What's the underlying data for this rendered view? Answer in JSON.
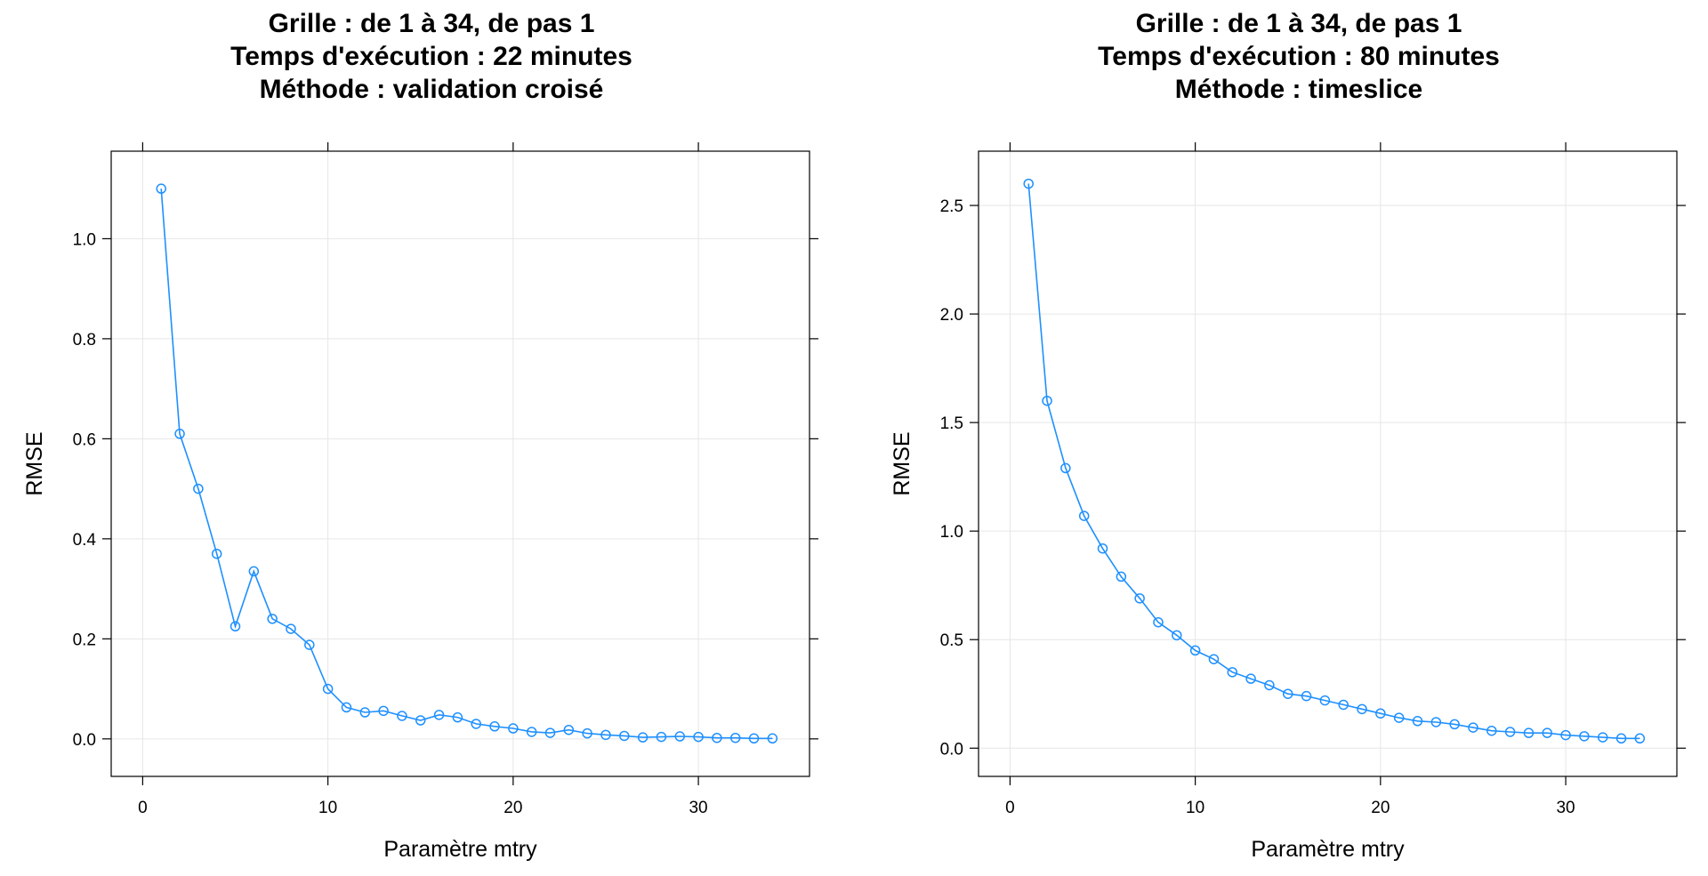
{
  "chart_data": [
    {
      "type": "line",
      "title_lines": [
        "Grille : de 1 à 34, de pas 1",
        "Temps d'exécution : 22 minutes",
        "Méthode : validation croisé"
      ],
      "xlabel": "Paramètre mtry",
      "ylabel": "RMSE",
      "xlim": [
        -1.7,
        36
      ],
      "ylim": [
        -0.075,
        1.175
      ],
      "xticks": [
        0,
        10,
        20,
        30
      ],
      "yticks": [
        0.0,
        0.2,
        0.4,
        0.6,
        0.8,
        1.0
      ],
      "ytick_labels": [
        "0.0",
        "0.2",
        "0.4",
        "0.6",
        "0.8",
        "1.0"
      ],
      "grid": true,
      "marker": "circle",
      "color": "#1E90FF",
      "x": [
        1,
        2,
        3,
        4,
        5,
        6,
        7,
        8,
        9,
        10,
        11,
        12,
        13,
        14,
        15,
        16,
        17,
        18,
        19,
        20,
        21,
        22,
        23,
        24,
        25,
        26,
        27,
        28,
        29,
        30,
        31,
        32,
        33,
        34
      ],
      "y": [
        1.1,
        0.61,
        0.5,
        0.37,
        0.225,
        0.335,
        0.24,
        0.22,
        0.188,
        0.1,
        0.063,
        0.053,
        0.056,
        0.046,
        0.037,
        0.048,
        0.043,
        0.03,
        0.025,
        0.021,
        0.014,
        0.012,
        0.018,
        0.011,
        0.008,
        0.006,
        0.003,
        0.004,
        0.005,
        0.004,
        0.002,
        0.002,
        0.001,
        0.001
      ]
    },
    {
      "type": "line",
      "title_lines": [
        "Grille : de 1 à 34, de pas 1",
        "Temps d'exécution : 80 minutes",
        "Méthode : timeslice"
      ],
      "xlabel": "Paramètre mtry",
      "ylabel": "RMSE",
      "xlim": [
        -1.7,
        36
      ],
      "ylim": [
        -0.13,
        2.75
      ],
      "xticks": [
        0,
        10,
        20,
        30
      ],
      "yticks": [
        0.0,
        0.5,
        1.0,
        1.5,
        2.0,
        2.5
      ],
      "ytick_labels": [
        "0.0",
        "0.5",
        "1.0",
        "1.5",
        "2.0",
        "2.5"
      ],
      "grid": true,
      "marker": "circle",
      "color": "#1E90FF",
      "x": [
        1,
        2,
        3,
        4,
        5,
        6,
        7,
        8,
        9,
        10,
        11,
        12,
        13,
        14,
        15,
        16,
        17,
        18,
        19,
        20,
        21,
        22,
        23,
        24,
        25,
        26,
        27,
        28,
        29,
        30,
        31,
        32,
        33,
        34
      ],
      "y": [
        2.6,
        1.6,
        1.29,
        1.07,
        0.92,
        0.79,
        0.69,
        0.58,
        0.52,
        0.45,
        0.41,
        0.35,
        0.32,
        0.29,
        0.25,
        0.24,
        0.22,
        0.2,
        0.18,
        0.16,
        0.14,
        0.125,
        0.12,
        0.11,
        0.095,
        0.08,
        0.075,
        0.07,
        0.07,
        0.06,
        0.055,
        0.05,
        0.045,
        0.045
      ]
    }
  ]
}
